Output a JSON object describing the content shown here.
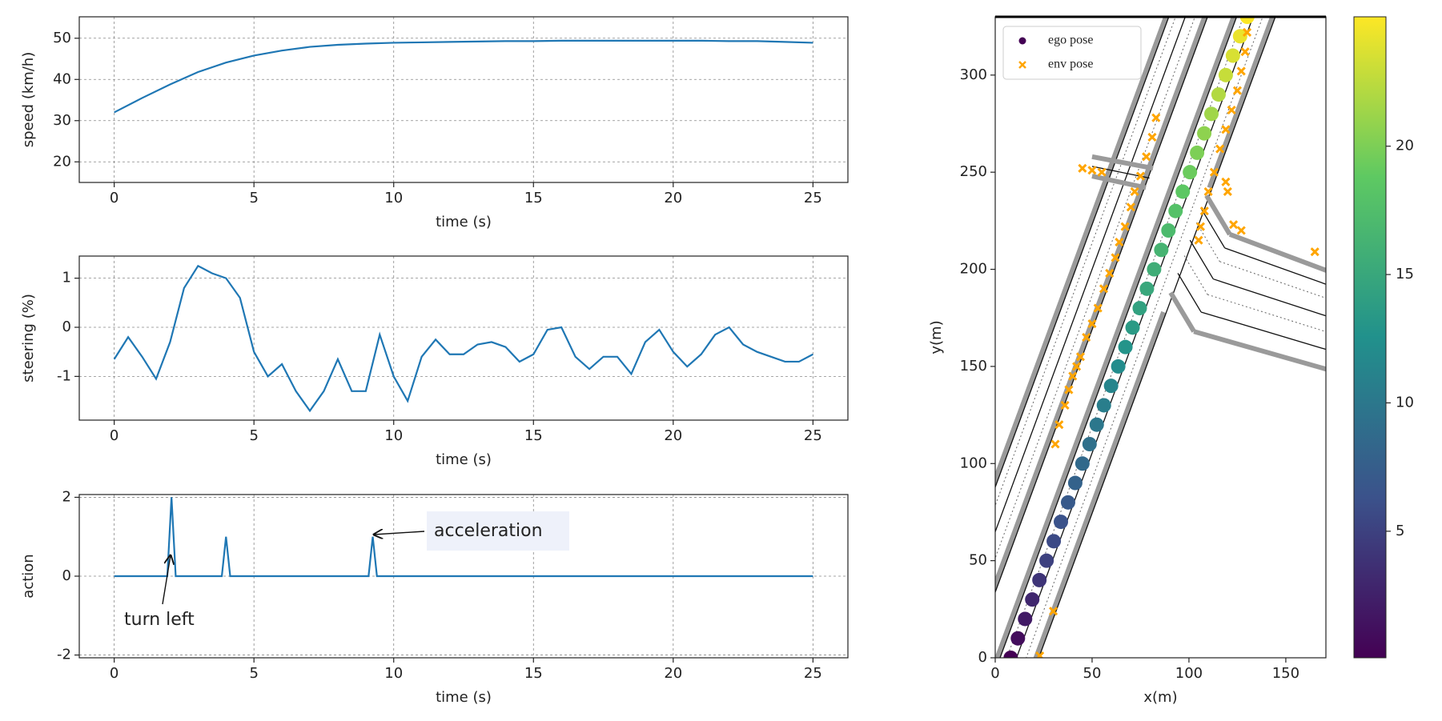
{
  "chart_data": [
    {
      "type": "line",
      "xlabel": "time (s)",
      "ylabel": "speed (km/h)",
      "grid": true,
      "x": [
        0,
        1,
        2,
        3,
        4,
        5,
        6,
        7,
        8,
        9,
        10,
        11,
        12,
        13,
        14,
        15,
        16,
        17,
        18,
        19,
        20,
        21,
        22,
        23,
        24,
        25
      ],
      "series": [
        {
          "color": "#1f77b4",
          "values": [
            32,
            35.5,
            38.8,
            41.8,
            44.1,
            45.8,
            47,
            47.9,
            48.4,
            48.7,
            48.9,
            49,
            49.1,
            49.2,
            49.3,
            49.3,
            49.4,
            49.4,
            49.4,
            49.4,
            49.4,
            49.4,
            49.3,
            49.3,
            49.1,
            48.9
          ]
        }
      ],
      "xlim": [
        -1.25,
        26.25
      ],
      "ylim": [
        15,
        55.2
      ],
      "xticks": [
        0,
        5,
        10,
        15,
        20,
        25
      ],
      "yticks": [
        20,
        30,
        40,
        50
      ]
    },
    {
      "type": "line",
      "xlabel": "time (s)",
      "ylabel": "steering (%)",
      "grid": true,
      "x": [
        0,
        0.5,
        1,
        1.5,
        2,
        2.5,
        3,
        3.5,
        4,
        4.5,
        5,
        5.5,
        6,
        6.5,
        7,
        7.5,
        8,
        8.5,
        9,
        9.5,
        10,
        10.5,
        11,
        11.5,
        12,
        12.5,
        13,
        13.5,
        14,
        14.5,
        15,
        15.5,
        16,
        16.5,
        17,
        17.5,
        18,
        18.5,
        19,
        19.5,
        20,
        20.5,
        21,
        21.5,
        22,
        22.5,
        23,
        23.5,
        24,
        24.5,
        25
      ],
      "series": [
        {
          "color": "#1f77b4",
          "values": [
            -0.65,
            -0.2,
            -0.6,
            -1.05,
            -0.3,
            0.8,
            1.25,
            1.1,
            1.0,
            0.6,
            -0.5,
            -1.0,
            -0.75,
            -1.3,
            -1.7,
            -1.3,
            -0.65,
            -1.3,
            -1.3,
            -0.15,
            -1.0,
            -1.5,
            -0.6,
            -0.25,
            -0.55,
            -0.55,
            -0.35,
            -0.3,
            -0.4,
            -0.7,
            -0.55,
            -0.05,
            0.0,
            -0.6,
            -0.85,
            -0.6,
            -0.6,
            -0.95,
            -0.3,
            -0.05,
            -0.5,
            -0.8,
            -0.55,
            -0.15,
            0.0,
            -0.35,
            -0.5,
            -0.6,
            -0.7,
            -0.7,
            -0.55
          ]
        }
      ],
      "xlim": [
        -1.25,
        26.25
      ],
      "ylim": [
        -1.89,
        1.45
      ],
      "xticks": [
        0,
        5,
        10,
        15,
        20,
        25
      ],
      "yticks": [
        -1,
        0,
        1
      ]
    },
    {
      "type": "line",
      "xlabel": "time (s)",
      "ylabel": "action",
      "grid": true,
      "x": [
        0,
        1.9,
        2.05,
        2.2,
        3.85,
        4,
        4.15,
        9.1,
        9.25,
        9.4,
        25
      ],
      "series": [
        {
          "color": "#1f77b4",
          "values": [
            0,
            0,
            2,
            0,
            0,
            1,
            0,
            0,
            1,
            0,
            0
          ]
        }
      ],
      "annotations": [
        "turn left",
        "acceleration"
      ],
      "xlim": [
        -1.25,
        26.25
      ],
      "ylim": [
        -2.07,
        2.07
      ],
      "xticks": [
        0,
        5,
        10,
        15,
        20,
        25
      ],
      "yticks": [
        -2,
        0,
        2
      ]
    },
    {
      "type": "scatter",
      "xlabel": "x(m)",
      "ylabel": "y(m)",
      "legend": "upper left",
      "xlim": [
        0,
        170.7
      ],
      "ylim": [
        0,
        330
      ],
      "xticks": [
        0,
        50,
        100,
        150
      ],
      "yticks": [
        0,
        50,
        100,
        150,
        200,
        250,
        300
      ],
      "series": [
        {
          "name": "ego pose",
          "color": "#440154",
          "marker": "o",
          "x": [
            8,
            11.7,
            15.4,
            19.1,
            22.8,
            26.5,
            30.2,
            33.9,
            37.6,
            41.3,
            45,
            48.7,
            52.4,
            56.1,
            59.8,
            63.5,
            67.2,
            70.9,
            74.6,
            78.3,
            82,
            85.7,
            89.4,
            93.1,
            96.8,
            100.5,
            104.2,
            107.9,
            111.6,
            115.3,
            119,
            122.7,
            126.4,
            130.1
          ],
          "y": [
            0,
            10,
            20,
            30,
            40,
            50,
            60,
            70,
            80,
            90,
            100,
            110,
            120,
            130,
            140,
            150,
            160,
            170,
            180,
            190,
            200,
            210,
            220,
            230,
            240,
            250,
            260,
            270,
            280,
            290,
            300,
            310,
            320,
            330
          ],
          "c": [
            0.1,
            1,
            2,
            3,
            4,
            5,
            5.7,
            6.4,
            7.1,
            7.9,
            8.6,
            9.3,
            10,
            10.7,
            11.4,
            12.1,
            12.9,
            13.6,
            14.3,
            15,
            15.7,
            16.4,
            17.1,
            17.9,
            18.6,
            19.3,
            20,
            20.7,
            21.4,
            22.1,
            22.9,
            23.6,
            24.3,
            25
          ]
        },
        {
          "name": "env pose",
          "color": "#ffa500",
          "marker": "x",
          "x": [
            31,
            33,
            36,
            38,
            40,
            42,
            44,
            47,
            50,
            53,
            56,
            59,
            62,
            64,
            67,
            70,
            72,
            75,
            78,
            81,
            83,
            105,
            106,
            108,
            110,
            113,
            116,
            119,
            122,
            125,
            127,
            129,
            130,
            45,
            50,
            55,
            119,
            120,
            123,
            127,
            165,
            30,
            23
          ],
          "y": [
            110,
            120,
            130,
            138,
            145,
            150,
            155,
            165,
            172,
            180,
            190,
            198,
            206,
            214,
            222,
            232,
            240,
            248,
            258,
            268,
            278,
            215,
            222,
            230,
            240,
            250,
            262,
            272,
            282,
            292,
            302,
            312,
            322,
            252,
            251,
            250,
            245,
            240,
            223,
            220,
            209,
            24,
            1
          ]
        }
      ],
      "colorbar": {
        "colormap": "viridis",
        "clim": [
          0.07,
          25.04
        ],
        "ticks": [
          5,
          10,
          15,
          20
        ]
      }
    }
  ]
}
